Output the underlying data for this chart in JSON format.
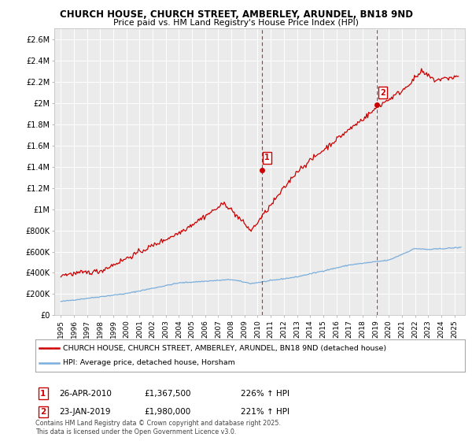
{
  "title_line1": "CHURCH HOUSE, CHURCH STREET, AMBERLEY, ARUNDEL, BN18 9ND",
  "title_line2": "Price paid vs. HM Land Registry's House Price Index (HPI)",
  "ylabel_ticks": [
    "£0",
    "£200K",
    "£400K",
    "£600K",
    "£800K",
    "£1M",
    "£1.2M",
    "£1.4M",
    "£1.6M",
    "£1.8M",
    "£2M",
    "£2.2M",
    "£2.4M",
    "£2.6M"
  ],
  "ylabel_values": [
    0,
    200000,
    400000,
    600000,
    800000,
    1000000,
    1200000,
    1400000,
    1600000,
    1800000,
    2000000,
    2200000,
    2400000,
    2600000
  ],
  "ylim": [
    0,
    2700000
  ],
  "xlim_start": 1994.5,
  "xlim_end": 2025.8,
  "sale1_x": 2010.32,
  "sale1_y": 1367500,
  "sale1_label": "1",
  "sale1_date": "26-APR-2010",
  "sale1_price": "£1,367,500",
  "sale1_hpi": "226% ↑ HPI",
  "sale2_x": 2019.07,
  "sale2_y": 1980000,
  "sale2_label": "2",
  "sale2_date": "23-JAN-2019",
  "sale2_price": "£1,980,000",
  "sale2_hpi": "221% ↑ HPI",
  "legend_line1": "CHURCH HOUSE, CHURCH STREET, AMBERLEY, ARUNDEL, BN18 9ND (detached house)",
  "legend_line2": "HPI: Average price, detached house, Horsham",
  "footnote": "Contains HM Land Registry data © Crown copyright and database right 2025.\nThis data is licensed under the Open Government Licence v3.0.",
  "house_color": "#cc0000",
  "hpi_color": "#7aaedc",
  "dashed_line_color": "#cc0000",
  "background_color": "#ffffff",
  "plot_bg_color": "#ebebeb"
}
